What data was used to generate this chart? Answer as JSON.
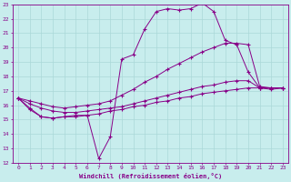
{
  "xlabel": "Windchill (Refroidissement éolien,°C)",
  "xlim": [
    -0.5,
    23.5
  ],
  "ylim": [
    12,
    23
  ],
  "yticks": [
    12,
    13,
    14,
    15,
    16,
    17,
    18,
    19,
    20,
    21,
    22,
    23
  ],
  "xticks": [
    0,
    1,
    2,
    3,
    4,
    5,
    6,
    7,
    8,
    9,
    10,
    11,
    12,
    13,
    14,
    15,
    16,
    17,
    18,
    19,
    20,
    21,
    22,
    23
  ],
  "bg_color": "#c8eded",
  "line_color": "#880088",
  "grid_color": "#aad8d8",
  "lines": [
    {
      "x": [
        0,
        1,
        2,
        3,
        4,
        5,
        6,
        7,
        8,
        9,
        10,
        11,
        12,
        13,
        14,
        15,
        16,
        17,
        18,
        19,
        20,
        21,
        22,
        23
      ],
      "y": [
        16.5,
        15.8,
        15.2,
        15.1,
        15.2,
        15.3,
        15.3,
        12.3,
        13.8,
        19.2,
        19.5,
        21.3,
        22.5,
        22.7,
        22.6,
        22.7,
        23.1,
        22.5,
        20.5,
        20.2,
        18.3,
        17.2,
        17.1,
        17.2
      ]
    },
    {
      "x": [
        0,
        1,
        2,
        3,
        4,
        5,
        6,
        7,
        8,
        9,
        10,
        11,
        12,
        13,
        14,
        15,
        16,
        17,
        18,
        19,
        20,
        21,
        22,
        23
      ],
      "y": [
        16.5,
        16.3,
        16.1,
        15.9,
        15.8,
        15.9,
        16.0,
        16.1,
        16.3,
        16.7,
        17.1,
        17.6,
        18.0,
        18.5,
        18.9,
        19.3,
        19.7,
        20.0,
        20.3,
        20.3,
        20.2,
        17.3,
        17.2,
        17.2
      ]
    },
    {
      "x": [
        0,
        1,
        2,
        3,
        4,
        5,
        6,
        7,
        8,
        9,
        10,
        11,
        12,
        13,
        14,
        15,
        16,
        17,
        18,
        19,
        20,
        21,
        22,
        23
      ],
      "y": [
        16.5,
        16.1,
        15.8,
        15.6,
        15.5,
        15.5,
        15.6,
        15.7,
        15.8,
        15.9,
        16.1,
        16.3,
        16.5,
        16.7,
        16.9,
        17.1,
        17.3,
        17.4,
        17.6,
        17.7,
        17.7,
        17.2,
        17.2,
        17.2
      ]
    },
    {
      "x": [
        0,
        1,
        2,
        3,
        4,
        5,
        6,
        7,
        8,
        9,
        10,
        11,
        12,
        13,
        14,
        15,
        16,
        17,
        18,
        19,
        20,
        21,
        22,
        23
      ],
      "y": [
        16.5,
        15.7,
        15.2,
        15.1,
        15.2,
        15.2,
        15.3,
        15.4,
        15.6,
        15.7,
        15.9,
        16.0,
        16.2,
        16.3,
        16.5,
        16.6,
        16.8,
        16.9,
        17.0,
        17.1,
        17.2,
        17.2,
        17.2,
        17.2
      ]
    }
  ]
}
